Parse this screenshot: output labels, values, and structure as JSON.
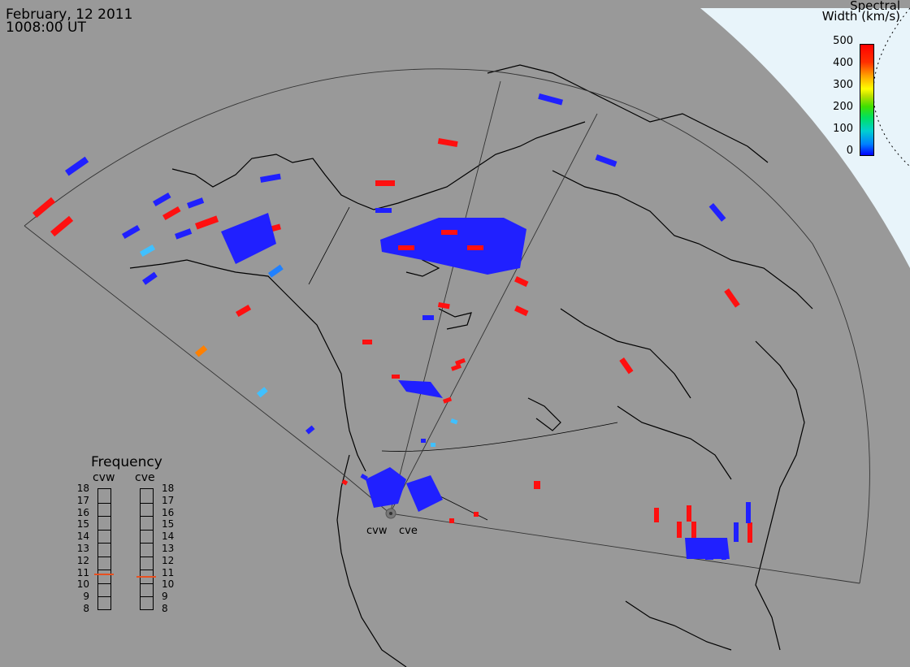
{
  "header": {
    "date": "February, 12 2011",
    "time": "1008:00 UT"
  },
  "colorbar": {
    "title_line1": "Spectral",
    "title_line2": "Width (km/s)",
    "ticks": [
      "500",
      "400",
      "300",
      "200",
      "100",
      "0"
    ],
    "colors": [
      "#0000ff",
      "#00d0d0",
      "#00e000",
      "#ffff00",
      "#ffa000",
      "#ff0000"
    ]
  },
  "frequency": {
    "title": "Frequency",
    "left_label": "cvw",
    "right_label": "cve",
    "ticks": [
      "18",
      "17",
      "16",
      "15",
      "14",
      "13",
      "12",
      "11",
      "10",
      "9",
      "8"
    ],
    "cvw_value_mhz": 10.9,
    "cve_value_mhz": 10.7
  },
  "sites": {
    "west": "cvw",
    "east": "cve"
  },
  "colors": {
    "background": "#999999",
    "pole_region": "#e8f4fa",
    "low": "#2020ff",
    "high": "#ff1010"
  }
}
